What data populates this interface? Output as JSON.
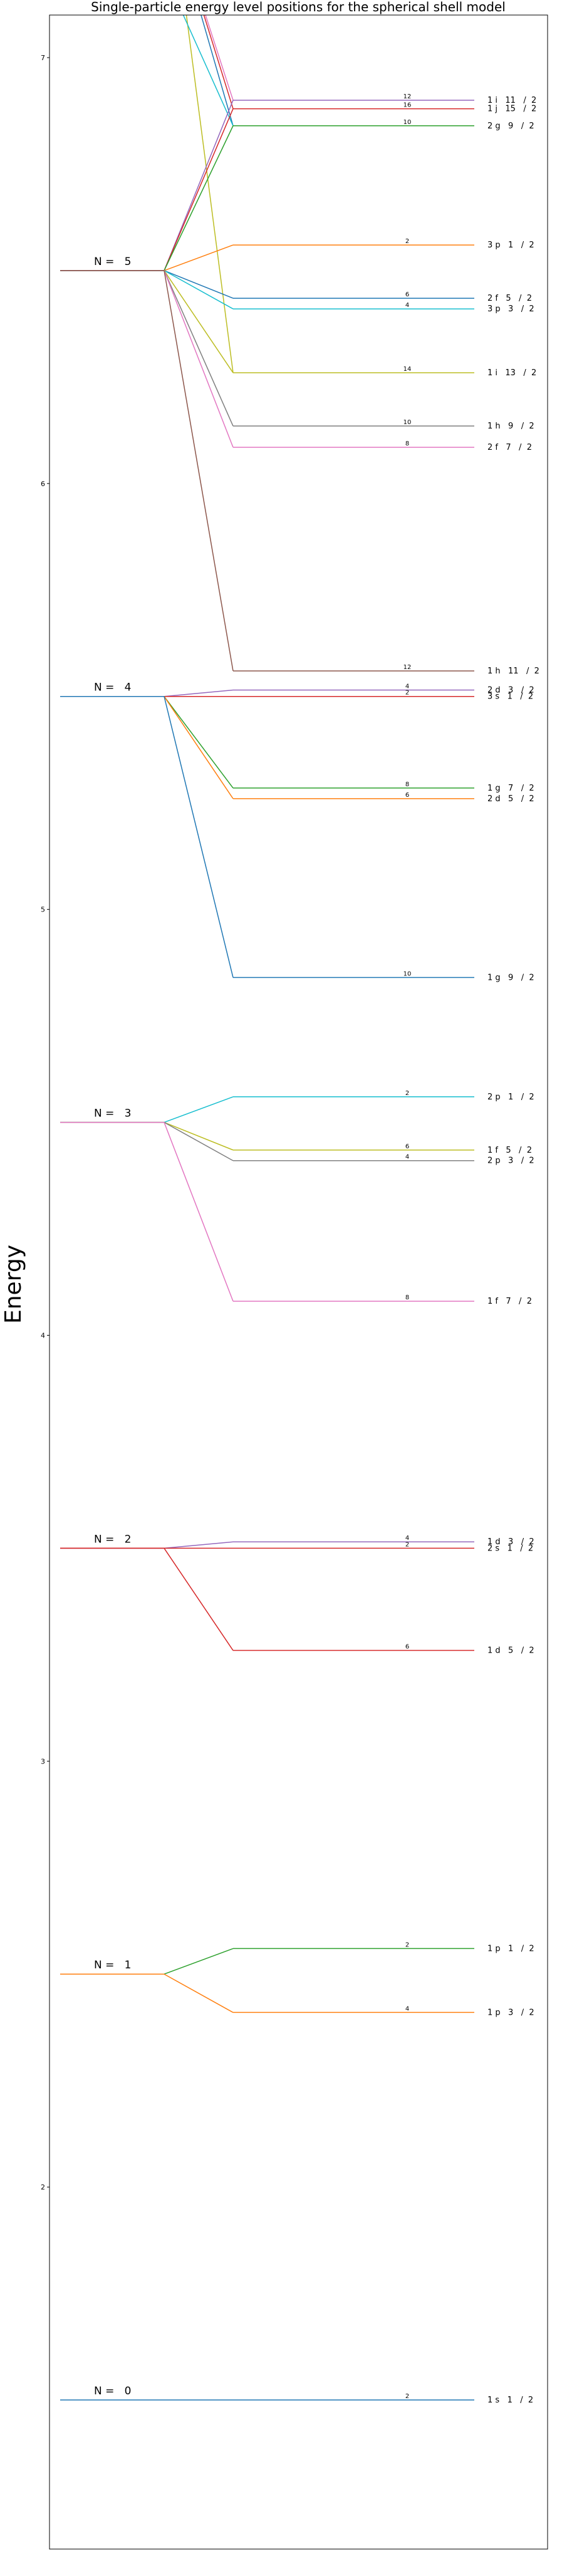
{
  "chart_data": {
    "type": "line",
    "title": "Single-particle energy level positions for the spherical shell model",
    "ylabel": "Energy",
    "ylim": [
      1.15,
      7.1
    ],
    "yticks": [
      2,
      3,
      4,
      5,
      6,
      7
    ],
    "grid": false,
    "shells": [
      {
        "label": "N =   0",
        "energy": 1.5,
        "levels": [
          {
            "state": "1 s   1   /  2",
            "energy": 1.5,
            "degeneracy": "2",
            "color": "#1f77b4"
          }
        ]
      },
      {
        "label": "N =   1",
        "energy": 2.5,
        "levels": [
          {
            "state": "1 p   1   /  2",
            "energy": 2.56,
            "degeneracy": "2",
            "color": "#2ca02c"
          },
          {
            "state": "1 p   3   /  2",
            "energy": 2.41,
            "degeneracy": "4",
            "color": "#ff7f0e"
          }
        ]
      },
      {
        "label": "N =   2",
        "energy": 3.5,
        "levels": [
          {
            "state": "1 d   3   /  2",
            "energy": 3.515,
            "degeneracy": "4",
            "color": "#9467bd"
          },
          {
            "state": "2 s   1   /  2",
            "energy": 3.5,
            "degeneracy": "2",
            "color": "#d62728"
          },
          {
            "state": "1 d   5   /  2",
            "energy": 3.26,
            "degeneracy": "6",
            "color": "#d62728"
          }
        ]
      },
      {
        "label": "N =   3",
        "energy": 4.5,
        "levels": [
          {
            "state": "2 p   1   /  2",
            "energy": 4.56,
            "degeneracy": "2",
            "color": "#17becf"
          },
          {
            "state": "1 f   5   /  2",
            "energy": 4.435,
            "degeneracy": "6",
            "color": "#bcbd22"
          },
          {
            "state": "2 p   3   /  2",
            "energy": 4.41,
            "degeneracy": "4",
            "color": "#7f7f7f"
          },
          {
            "state": "1 f   7   /  2",
            "energy": 4.08,
            "degeneracy": "8",
            "color": "#e377c2"
          }
        ]
      },
      {
        "label": "N =   4",
        "energy": 5.5,
        "levels": [
          {
            "state": "2 d   3   /  2",
            "energy": 5.515,
            "degeneracy": "4",
            "color": "#9467bd"
          },
          {
            "state": "3 s   1   /  2",
            "energy": 5.5,
            "degeneracy": "2",
            "color": "#d62728"
          },
          {
            "state": "1 g   7   /  2",
            "energy": 5.285,
            "degeneracy": "8",
            "color": "#2ca02c"
          },
          {
            "state": "2 d   5   /  2",
            "energy": 5.26,
            "degeneracy": "6",
            "color": "#ff7f0e"
          },
          {
            "state": "1 g   9   /  2",
            "energy": 4.84,
            "degeneracy": "10",
            "color": "#1f77b4"
          }
        ]
      },
      {
        "label": "N =   5",
        "energy": 6.5,
        "levels": [
          {
            "state": "1 i   11   /  2",
            "energy": 6.9,
            "degeneracy": "12",
            "color": "#9467bd"
          },
          {
            "state": "1 j   15   /  2",
            "energy": 6.88,
            "degeneracy": "16",
            "color": "#d62728"
          },
          {
            "state": "2 g   9   /  2",
            "energy": 6.84,
            "degeneracy": "10",
            "color": "#2ca02c"
          },
          {
            "state": "3 p   1   /  2",
            "energy": 6.56,
            "degeneracy": "2",
            "color": "#ff7f0e"
          },
          {
            "state": "2 f   5   /  2",
            "energy": 6.435,
            "degeneracy": "6",
            "color": "#1f77b4"
          },
          {
            "state": "3 p   3   /  2",
            "energy": 6.41,
            "degeneracy": "4",
            "color": "#17becf"
          },
          {
            "state": "1 i   13   /  2",
            "energy": 6.26,
            "degeneracy": "14",
            "color": "#bcbd22"
          },
          {
            "state": "1 h   9   /  2",
            "energy": 6.135,
            "degeneracy": "10",
            "color": "#7f7f7f"
          },
          {
            "state": "2 f   7   /  2",
            "energy": 6.085,
            "degeneracy": "8",
            "color": "#e377c2"
          },
          {
            "state": "1 h   11   /  2",
            "energy": 5.56,
            "degeneracy": "12",
            "color": "#8c564b"
          }
        ]
      }
    ],
    "offscreen_lines": [
      {
        "color": "#bcbd22",
        "to_energy": 6.26,
        "from_energy": 7.5
      },
      {
        "color": "#1f77b4",
        "to_energy": 6.84,
        "from_energy": 7.4
      },
      {
        "color": "#17becf",
        "to_energy": 6.84,
        "from_energy": 7.2
      },
      {
        "color": "#d62728",
        "to_energy": 6.88,
        "from_energy": 7.4
      },
      {
        "color": "#e377c2",
        "to_energy": 6.9,
        "from_energy": 7.4
      }
    ]
  }
}
